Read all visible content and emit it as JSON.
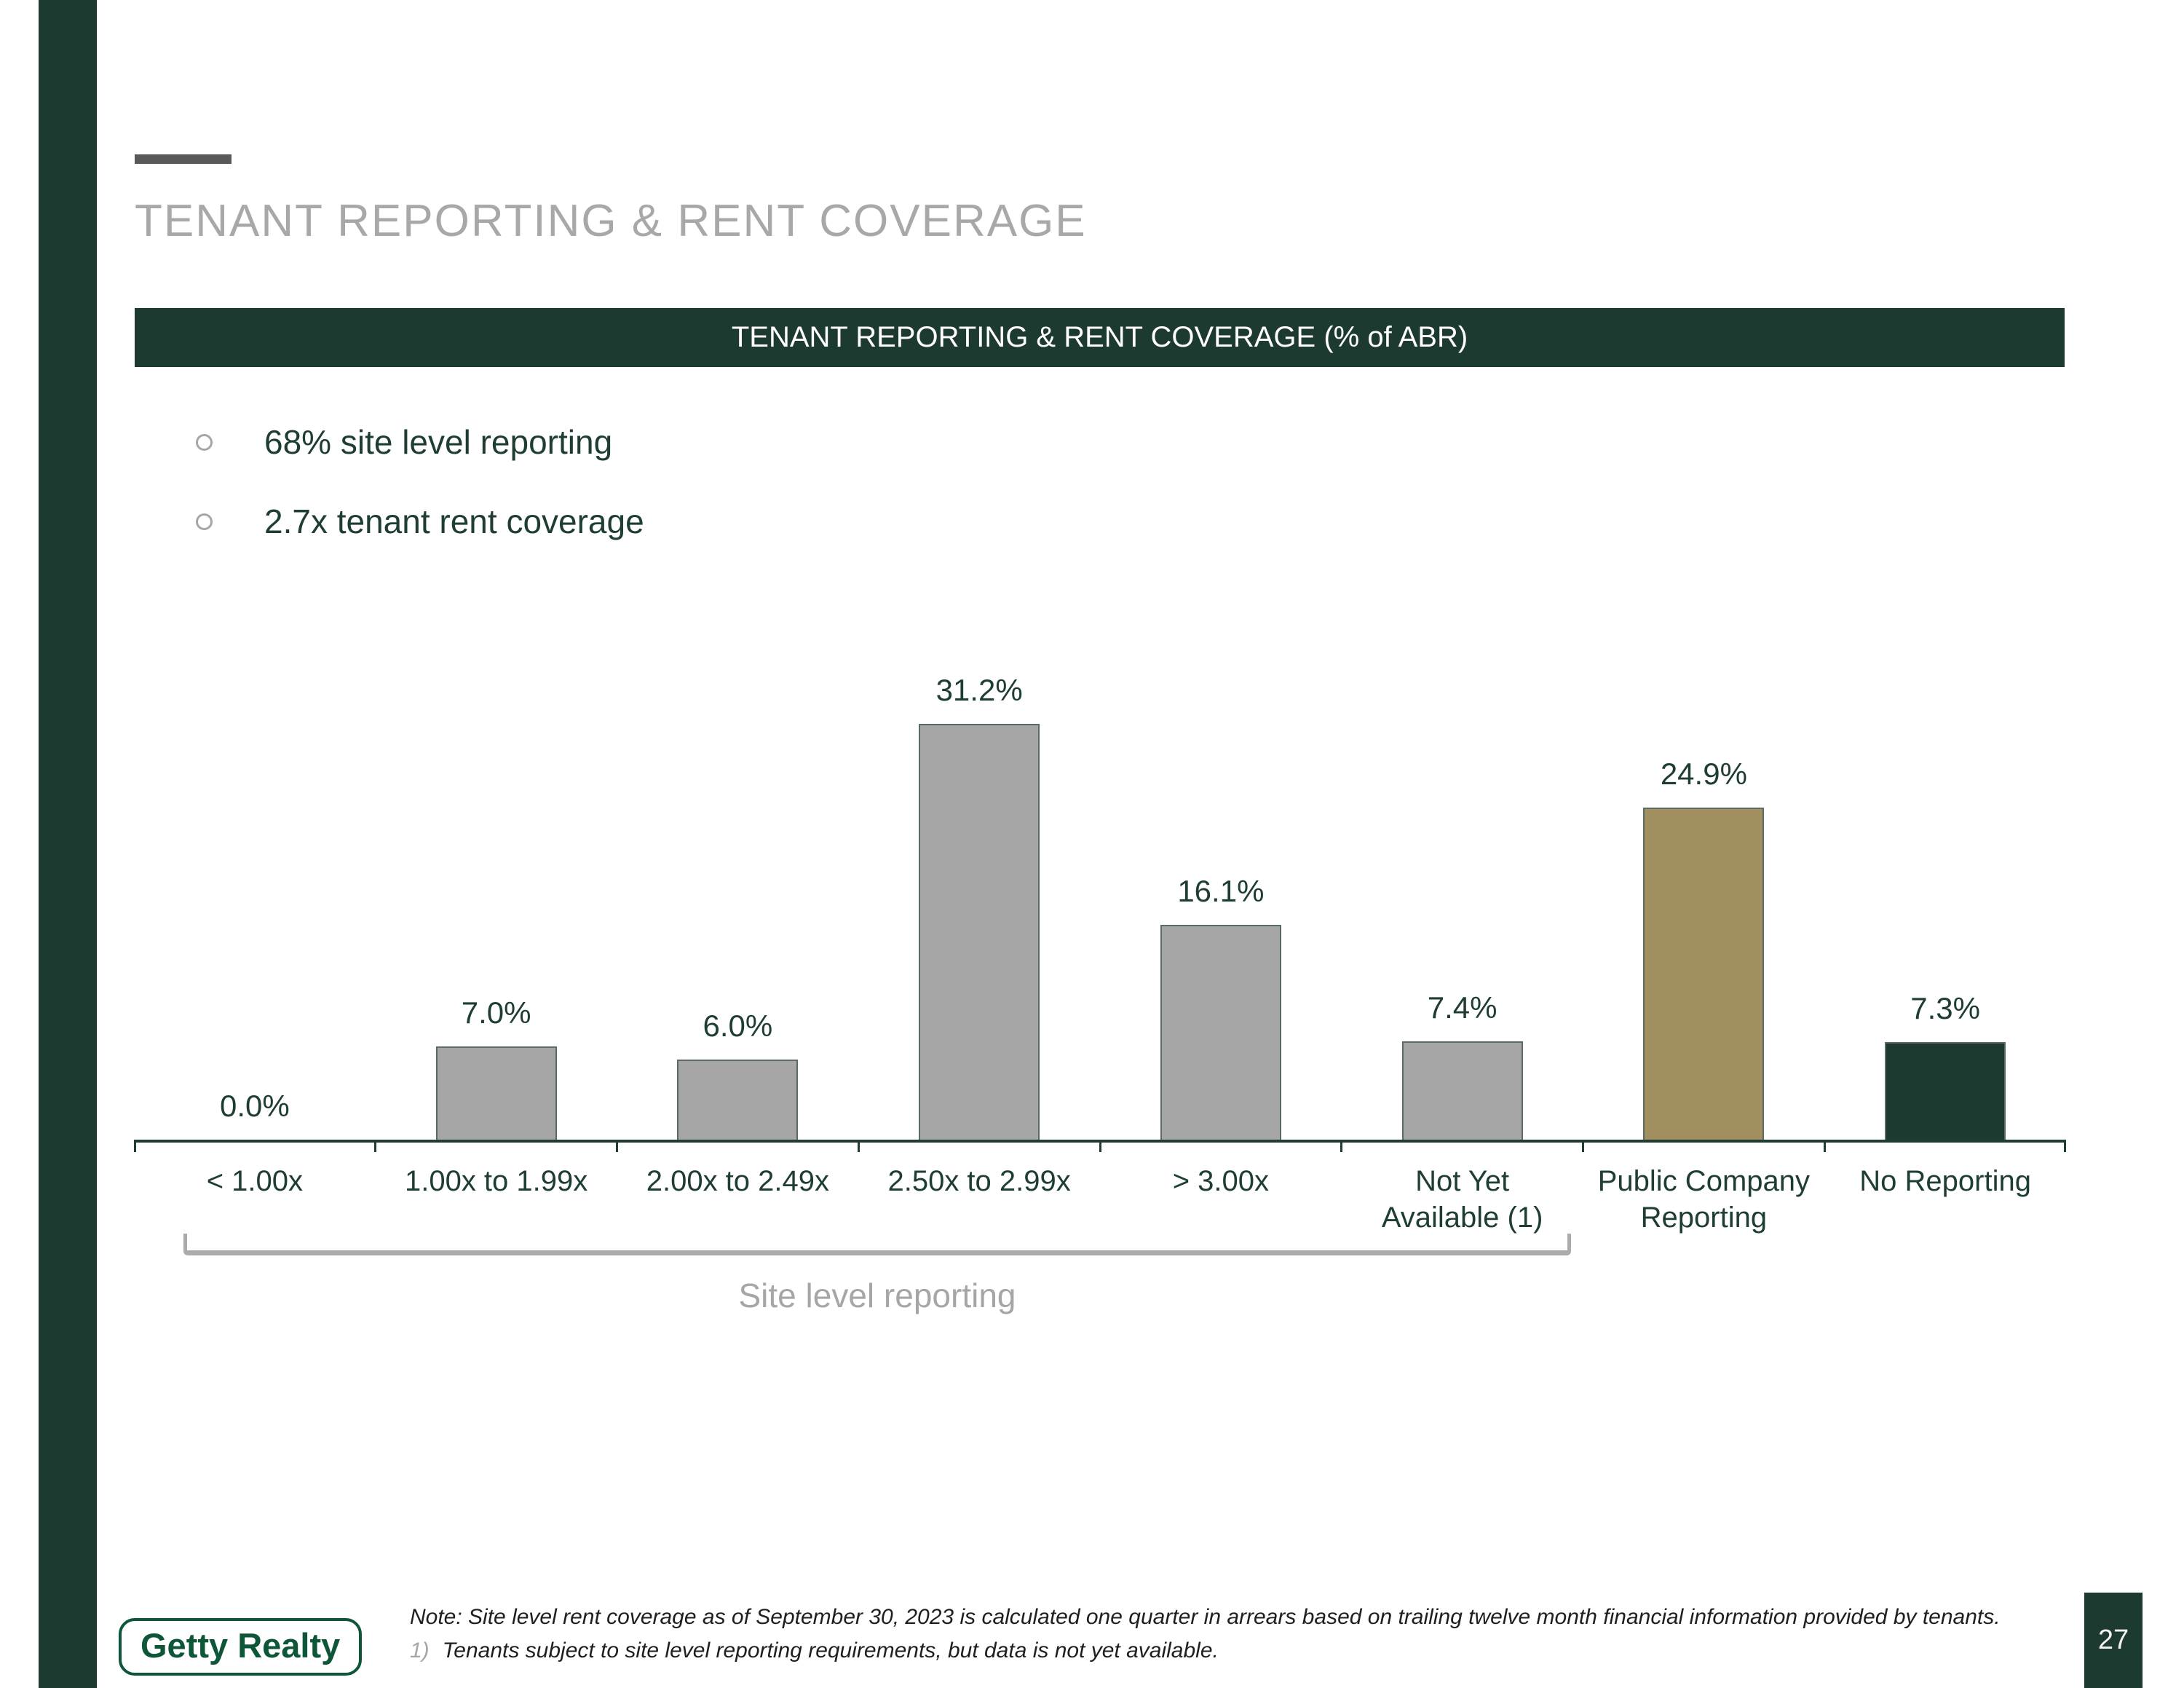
{
  "slide": {
    "title": "TENANT REPORTING & RENT COVERAGE",
    "page_number": "27",
    "logo_text": "Getty Realty"
  },
  "banner": {
    "label": "TENANT REPORTING & RENT COVERAGE (% of ABR)",
    "bg_color": "#1d3a31",
    "text_color": "#ffffff"
  },
  "bullets": [
    {
      "label": "68% site level reporting"
    },
    {
      "label": "2.7x tenant rent coverage"
    }
  ],
  "chart_data": {
    "type": "bar",
    "title": "TENANT REPORTING & RENT COVERAGE (% of ABR)",
    "categories": [
      "< 1.00x",
      "1.00x to 1.99x",
      "2.00x to 2.49x",
      "2.50x to 2.99x",
      "> 3.00x",
      "Not Yet\nAvailable (1)",
      "Public Company\nReporting",
      "No Reporting"
    ],
    "values": [
      0.0,
      7.0,
      6.0,
      31.2,
      16.1,
      7.4,
      24.9,
      7.3
    ],
    "value_labels": [
      "0.0%",
      "7.0%",
      "6.0%",
      "31.2%",
      "16.1%",
      "7.4%",
      "24.9%",
      "7.3%"
    ],
    "bar_colors": [
      "#a6a6a6",
      "#a6a6a6",
      "#a6a6a6",
      "#a6a6a6",
      "#a6a6a6",
      "#a6a6a6",
      "#a18f60",
      "#1d3a31"
    ],
    "bar_border_color": "#5a6b60",
    "axis_color": "#203c33",
    "label_color": "#1e3d33",
    "ylim": [
      0,
      34.3
    ],
    "xlabel": "",
    "ylabel": "",
    "gridlines": false,
    "legend": null,
    "bracket": {
      "label": "Site level reporting",
      "from_category": "< 1.00x",
      "to_category": "Not Yet\nAvailable (1)"
    }
  },
  "footnotes": {
    "note": "Note: Site level rent coverage as of September 30, 2023 is calculated one quarter in arrears based on trailing twelve month financial information provided by tenants.",
    "item1_marker": "1)",
    "item1_text": "Tenants subject to site level reporting requirements, but data is not yet available."
  },
  "colors": {
    "dark_green": "#1d3a31",
    "gold": "#a18f60",
    "gray_bar": "#a6a6a6",
    "title_gray": "#a8a8a8",
    "accent_gray": "#595959",
    "logo_green": "#0e5638"
  }
}
